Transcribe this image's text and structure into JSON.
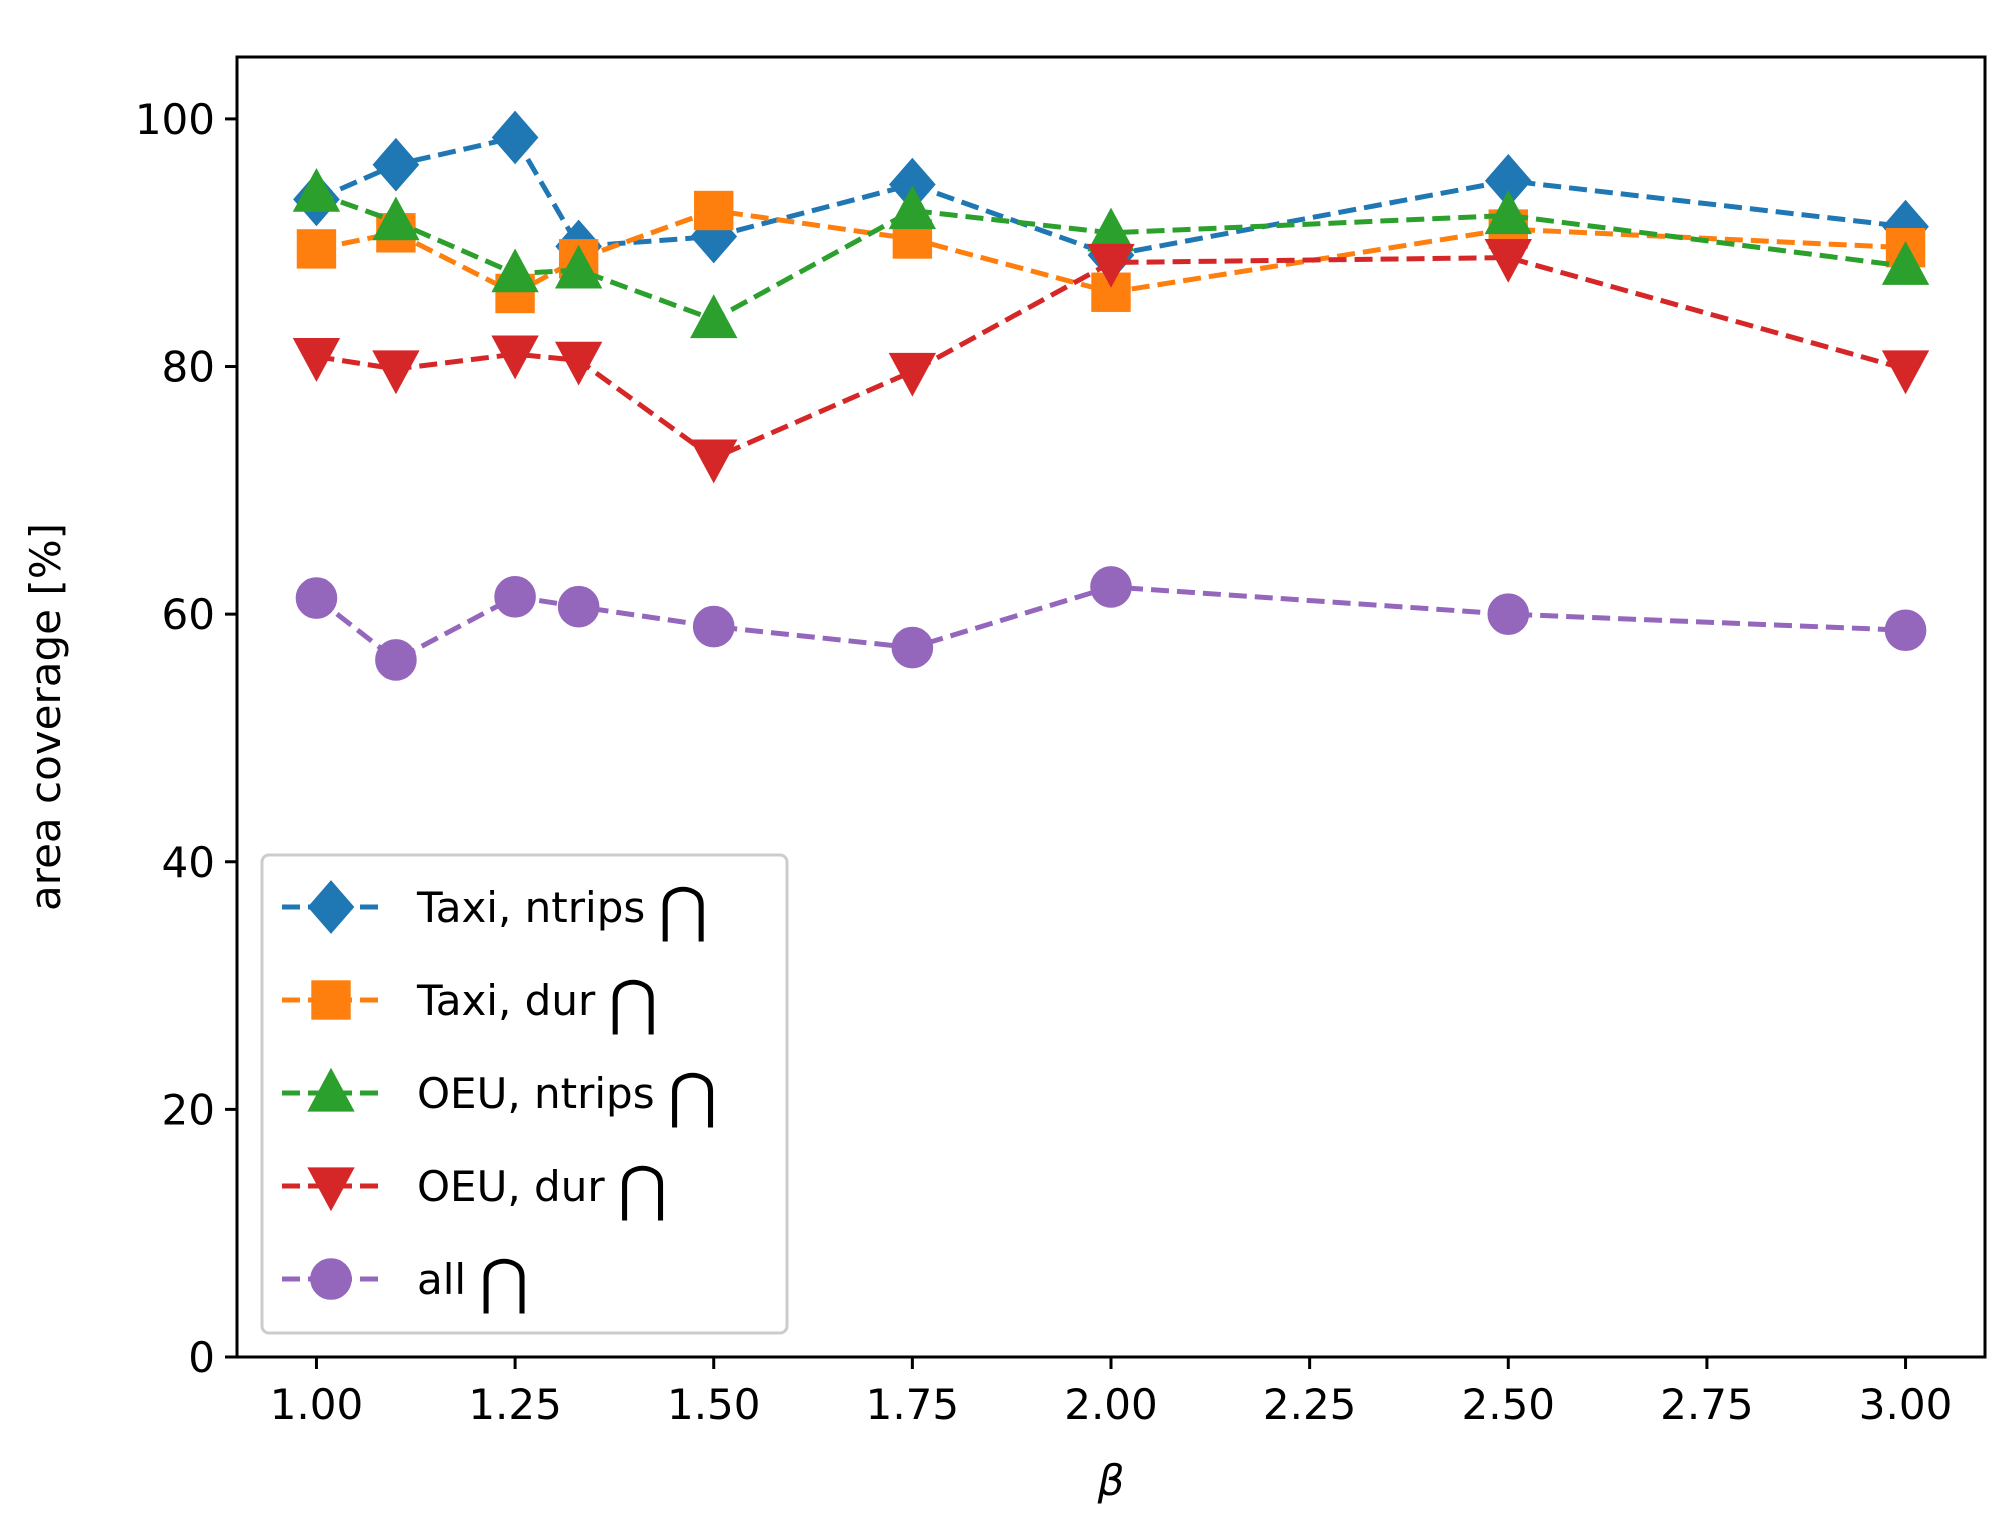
{
  "chart_data": {
    "type": "line",
    "title": "",
    "xlabel": "β",
    "ylabel": "area coverage  [%]",
    "xlim": [
      0.9,
      3.1
    ],
    "ylim": [
      0,
      105
    ],
    "xticks": [
      1.0,
      1.25,
      1.5,
      1.75,
      2.0,
      2.25,
      2.5,
      2.75,
      3.0
    ],
    "xtick_labels": [
      "1.00",
      "1.25",
      "1.50",
      "1.75",
      "2.00",
      "2.25",
      "2.50",
      "2.75",
      "3.00"
    ],
    "yticks": [
      0,
      20,
      40,
      60,
      80,
      100
    ],
    "ytick_labels": [
      "0",
      "20",
      "40",
      "60",
      "80",
      "100"
    ],
    "grid": false,
    "legend_position": "lower-left",
    "x": [
      1.0,
      1.1,
      1.25,
      1.33,
      1.5,
      1.75,
      2.0,
      2.5,
      3.0
    ],
    "series": [
      {
        "name": "Taxi, ntrips",
        "legend_symbol": "⋂",
        "color": "#1f77b4",
        "marker": "diamond",
        "values": [
          93.5,
          96.3,
          98.5,
          89.7,
          90.5,
          94.7,
          89.0,
          95.0,
          91.3
        ]
      },
      {
        "name": "Taxi, dur",
        "legend_symbol": "⋂",
        "color": "#ff7f0e",
        "marker": "square",
        "values": [
          89.5,
          90.8,
          85.9,
          88.7,
          92.6,
          90.3,
          86.0,
          91.1,
          89.6
        ]
      },
      {
        "name": "OEU, ntrips",
        "legend_symbol": "⋂",
        "color": "#2ca02c",
        "marker": "triangle-up",
        "values": [
          94.0,
          91.7,
          87.5,
          87.8,
          83.8,
          92.6,
          90.8,
          92.2,
          88.1
        ]
      },
      {
        "name": "OEU, dur",
        "legend_symbol": "⋂",
        "color": "#d62728",
        "marker": "triangle-down",
        "values": [
          80.8,
          79.8,
          81.0,
          80.5,
          72.6,
          79.6,
          88.4,
          88.8,
          79.8
        ]
      },
      {
        "name": "all",
        "legend_symbol": "⋂",
        "color": "#9467bd",
        "marker": "circle",
        "values": [
          61.3,
          56.3,
          61.4,
          60.6,
          59.0,
          57.3,
          62.2,
          60.0,
          58.7
        ]
      }
    ]
  }
}
